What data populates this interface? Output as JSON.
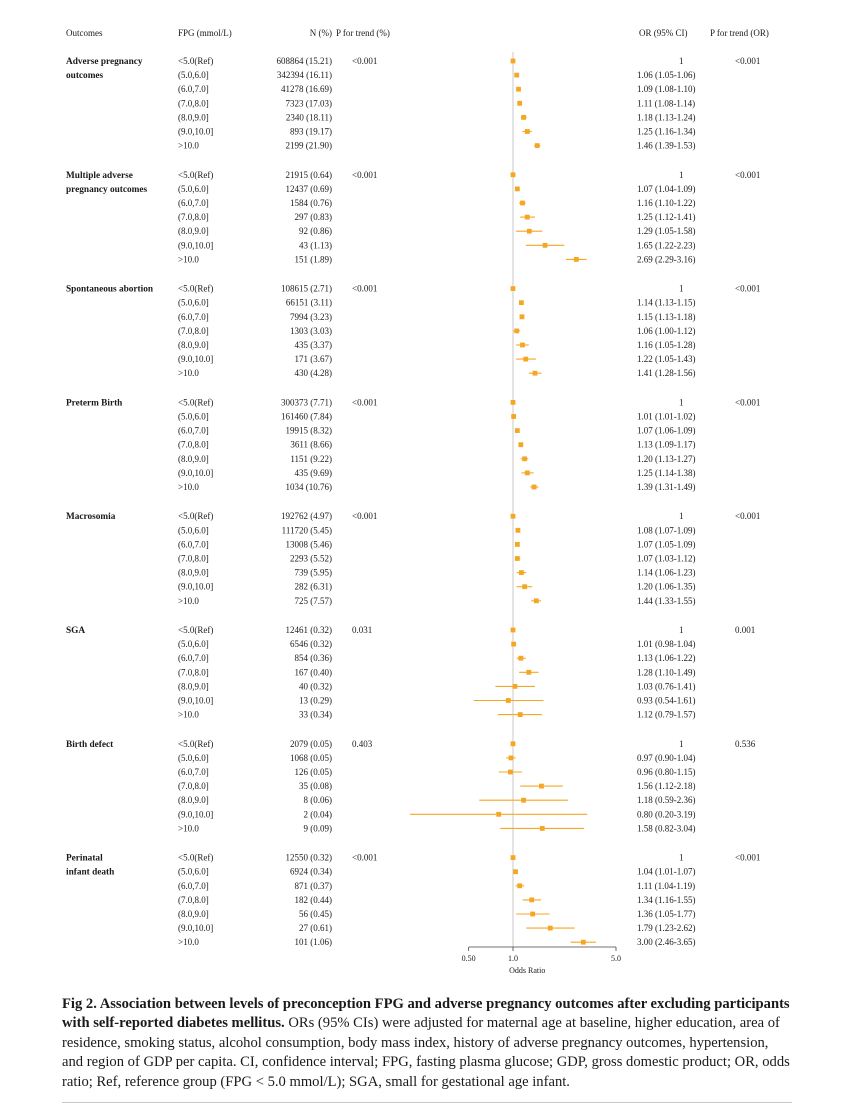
{
  "chart_data": {
    "type": "forest",
    "headers": {
      "outcomes": "Outcomes",
      "fpg": "FPG (mmol/L)",
      "n": "N (%)",
      "p_trend_pct": "P for trend (%)",
      "or": "OR (95% CI)",
      "p_trend_or": "P for trend (OR)"
    },
    "xlabel": "Odds Ratio",
    "x_scale": "log",
    "x_ticks": [
      "0.50",
      "1.0",
      "5.0"
    ],
    "reference_line": 1.0,
    "groups": [
      {
        "name": "Adverse pregnancy outcomes",
        "name_lines": [
          "Adverse pregnancy",
          "outcomes"
        ],
        "p_trend_pct": "<0.001",
        "p_trend_or": "<0.001",
        "rows": [
          {
            "fpg": "<5.0(Ref)",
            "n": "608864 (15.21)",
            "or_text": "1",
            "or": 1.0,
            "lo": 1.0,
            "hi": 1.0
          },
          {
            "fpg": "(5.0,6.0]",
            "n": "342394 (16.11)",
            "or_text": "1.06 (1.05-1.06)",
            "or": 1.06,
            "lo": 1.05,
            "hi": 1.06
          },
          {
            "fpg": "(6.0,7.0]",
            "n": "41278 (16.69)",
            "or_text": "1.09 (1.08-1.10)",
            "or": 1.09,
            "lo": 1.08,
            "hi": 1.1
          },
          {
            "fpg": "(7.0,8.0]",
            "n": "7323 (17.03)",
            "or_text": "1.11 (1.08-1.14)",
            "or": 1.11,
            "lo": 1.08,
            "hi": 1.14
          },
          {
            "fpg": "(8.0,9.0]",
            "n": "2340 (18.11)",
            "or_text": "1.18 (1.13-1.24)",
            "or": 1.18,
            "lo": 1.13,
            "hi": 1.24
          },
          {
            "fpg": "(9.0,10.0]",
            "n": "893 (19.17)",
            "or_text": "1.25 (1.16-1.34)",
            "or": 1.25,
            "lo": 1.16,
            "hi": 1.34
          },
          {
            "fpg": ">10.0",
            "n": "2199 (21.90)",
            "or_text": "1.46 (1.39-1.53)",
            "or": 1.46,
            "lo": 1.39,
            "hi": 1.53
          }
        ]
      },
      {
        "name": "Multiple adverse pregnancy outcomes",
        "name_lines": [
          "Multiple adverse",
          "pregnancy outcomes"
        ],
        "p_trend_pct": "<0.001",
        "p_trend_or": "<0.001",
        "rows": [
          {
            "fpg": "<5.0(Ref)",
            "n": "21915 (0.64)",
            "or_text": "1",
            "or": 1.0,
            "lo": 1.0,
            "hi": 1.0
          },
          {
            "fpg": "(5.0,6.0]",
            "n": "12437 (0.69)",
            "or_text": "1.07 (1.04-1.09)",
            "or": 1.07,
            "lo": 1.04,
            "hi": 1.09
          },
          {
            "fpg": "(6.0,7.0]",
            "n": "1584 (0.76)",
            "or_text": "1.16 (1.10-1.22)",
            "or": 1.16,
            "lo": 1.1,
            "hi": 1.22
          },
          {
            "fpg": "(7.0,8.0]",
            "n": "297 (0.83)",
            "or_text": "1.25 (1.12-1.41)",
            "or": 1.25,
            "lo": 1.12,
            "hi": 1.41
          },
          {
            "fpg": "(8.0,9.0]",
            "n": "92 (0.86)",
            "or_text": "1.29 (1.05-1.58)",
            "or": 1.29,
            "lo": 1.05,
            "hi": 1.58
          },
          {
            "fpg": "(9.0,10.0]",
            "n": "43 (1.13)",
            "or_text": "1.65 (1.22-2.23)",
            "or": 1.65,
            "lo": 1.22,
            "hi": 2.23
          },
          {
            "fpg": ">10.0",
            "n": "151 (1.89)",
            "or_text": "2.69 (2.29-3.16)",
            "or": 2.69,
            "lo": 2.29,
            "hi": 3.16
          }
        ]
      },
      {
        "name": "Spontaneous abortion",
        "name_lines": [
          "Spontaneous abortion"
        ],
        "p_trend_pct": "<0.001",
        "p_trend_or": "<0.001",
        "rows": [
          {
            "fpg": "<5.0(Ref)",
            "n": "108615 (2.71)",
            "or_text": "1",
            "or": 1.0,
            "lo": 1.0,
            "hi": 1.0
          },
          {
            "fpg": "(5.0,6.0]",
            "n": "66151 (3.11)",
            "or_text": "1.14 (1.13-1.15)",
            "or": 1.14,
            "lo": 1.13,
            "hi": 1.15
          },
          {
            "fpg": "(6.0,7.0]",
            "n": "7994 (3.23)",
            "or_text": "1.15 (1.13-1.18)",
            "or": 1.15,
            "lo": 1.13,
            "hi": 1.18
          },
          {
            "fpg": "(7.0,8.0]",
            "n": "1303 (3.03)",
            "or_text": "1.06 (1.00-1.12)",
            "or": 1.06,
            "lo": 1.0,
            "hi": 1.12
          },
          {
            "fpg": "(8.0,9.0]",
            "n": "435 (3.37)",
            "or_text": "1.16 (1.05-1.28)",
            "or": 1.16,
            "lo": 1.05,
            "hi": 1.28
          },
          {
            "fpg": "(9.0,10.0]",
            "n": "171 (3.67)",
            "or_text": "1.22 (1.05-1.43)",
            "or": 1.22,
            "lo": 1.05,
            "hi": 1.43
          },
          {
            "fpg": ">10.0",
            "n": "430 (4.28)",
            "or_text": "1.41 (1.28-1.56)",
            "or": 1.41,
            "lo": 1.28,
            "hi": 1.56
          }
        ]
      },
      {
        "name": "Preterm Birth",
        "name_lines": [
          "Preterm Birth"
        ],
        "p_trend_pct": "<0.001",
        "p_trend_or": "<0.001",
        "rows": [
          {
            "fpg": "<5.0(Ref)",
            "n": "300373 (7.71)",
            "or_text": "1",
            "or": 1.0,
            "lo": 1.0,
            "hi": 1.0
          },
          {
            "fpg": "(5.0,6.0]",
            "n": "161460 (7.84)",
            "or_text": "1.01 (1.01-1.02)",
            "or": 1.01,
            "lo": 1.01,
            "hi": 1.02
          },
          {
            "fpg": "(6.0,7.0]",
            "n": "19915 (8.32)",
            "or_text": "1.07 (1.06-1.09)",
            "or": 1.07,
            "lo": 1.06,
            "hi": 1.09
          },
          {
            "fpg": "(7.0,8.0]",
            "n": "3611 (8.66)",
            "or_text": "1.13 (1.09-1.17)",
            "or": 1.13,
            "lo": 1.09,
            "hi": 1.17
          },
          {
            "fpg": "(8.0,9.0]",
            "n": "1151 (9.22)",
            "or_text": "1.20 (1.13-1.27)",
            "or": 1.2,
            "lo": 1.13,
            "hi": 1.27
          },
          {
            "fpg": "(9.0,10.0]",
            "n": "435 (9.69)",
            "or_text": "1.25 (1.14-1.38)",
            "or": 1.25,
            "lo": 1.14,
            "hi": 1.38
          },
          {
            "fpg": ">10.0",
            "n": "1034 (10.76)",
            "or_text": "1.39 (1.31-1.49)",
            "or": 1.39,
            "lo": 1.31,
            "hi": 1.49
          }
        ]
      },
      {
        "name": "Macrosomia",
        "name_lines": [
          "Macrosomia"
        ],
        "p_trend_pct": "<0.001",
        "p_trend_or": "<0.001",
        "rows": [
          {
            "fpg": "<5.0(Ref)",
            "n": "192762 (4.97)",
            "or_text": "1",
            "or": 1.0,
            "lo": 1.0,
            "hi": 1.0
          },
          {
            "fpg": "(5.0,6.0]",
            "n": "111720 (5.45)",
            "or_text": "1.08 (1.07-1.09)",
            "or": 1.08,
            "lo": 1.07,
            "hi": 1.09
          },
          {
            "fpg": "(6.0,7.0]",
            "n": "13008 (5.46)",
            "or_text": "1.07 (1.05-1.09)",
            "or": 1.07,
            "lo": 1.05,
            "hi": 1.09
          },
          {
            "fpg": "(7.0,8.0]",
            "n": "2293 (5.52)",
            "or_text": "1.07 (1.03-1.12)",
            "or": 1.07,
            "lo": 1.03,
            "hi": 1.12
          },
          {
            "fpg": "(8.0,9.0]",
            "n": "739 (5.95)",
            "or_text": "1.14 (1.06-1.23)",
            "or": 1.14,
            "lo": 1.06,
            "hi": 1.23
          },
          {
            "fpg": "(9.0,10.0]",
            "n": "282 (6.31)",
            "or_text": "1.20 (1.06-1.35)",
            "or": 1.2,
            "lo": 1.06,
            "hi": 1.35
          },
          {
            "fpg": ">10.0",
            "n": "725 (7.57)",
            "or_text": "1.44 (1.33-1.55)",
            "or": 1.44,
            "lo": 1.33,
            "hi": 1.55
          }
        ]
      },
      {
        "name": "SGA",
        "name_lines": [
          "SGA"
        ],
        "p_trend_pct": "0.031",
        "p_trend_or": "0.001",
        "rows": [
          {
            "fpg": "<5.0(Ref)",
            "n": "12461 (0.32)",
            "or_text": "1",
            "or": 1.0,
            "lo": 1.0,
            "hi": 1.0
          },
          {
            "fpg": "(5.0,6.0]",
            "n": "6546 (0.32)",
            "or_text": "1.01 (0.98-1.04)",
            "or": 1.01,
            "lo": 0.98,
            "hi": 1.04
          },
          {
            "fpg": "(6.0,7.0]",
            "n": "854 (0.36)",
            "or_text": "1.13 (1.06-1.22)",
            "or": 1.13,
            "lo": 1.06,
            "hi": 1.22
          },
          {
            "fpg": "(7.0,8.0]",
            "n": "167 (0.40)",
            "or_text": "1.28 (1.10-1.49)",
            "or": 1.28,
            "lo": 1.1,
            "hi": 1.49
          },
          {
            "fpg": "(8.0,9.0]",
            "n": "40 (0.32)",
            "or_text": "1.03 (0.76-1.41)",
            "or": 1.03,
            "lo": 0.76,
            "hi": 1.41
          },
          {
            "fpg": "(9.0,10.0]",
            "n": "13 (0.29)",
            "or_text": "0.93 (0.54-1.61)",
            "or": 0.93,
            "lo": 0.54,
            "hi": 1.61
          },
          {
            "fpg": ">10.0",
            "n": "33 (0.34)",
            "or_text": "1.12 (0.79-1.57)",
            "or": 1.12,
            "lo": 0.79,
            "hi": 1.57
          }
        ]
      },
      {
        "name": "Birth defect",
        "name_lines": [
          "Birth defect"
        ],
        "p_trend_pct": "0.403",
        "p_trend_or": "0.536",
        "rows": [
          {
            "fpg": "<5.0(Ref)",
            "n": "2079 (0.05)",
            "or_text": "1",
            "or": 1.0,
            "lo": 1.0,
            "hi": 1.0
          },
          {
            "fpg": "(5.0,6.0]",
            "n": "1068 (0.05)",
            "or_text": "0.97 (0.90-1.04)",
            "or": 0.97,
            "lo": 0.9,
            "hi": 1.04
          },
          {
            "fpg": "(6.0,7.0]",
            "n": "126 (0.05)",
            "or_text": "0.96 (0.80-1.15)",
            "or": 0.96,
            "lo": 0.8,
            "hi": 1.15
          },
          {
            "fpg": "(7.0,8.0]",
            "n": "35 (0.08)",
            "or_text": "1.56 (1.12-2.18)",
            "or": 1.56,
            "lo": 1.12,
            "hi": 2.18
          },
          {
            "fpg": "(8.0,9.0]",
            "n": "8 (0.06)",
            "or_text": "1.18 (0.59-2.36)",
            "or": 1.18,
            "lo": 0.59,
            "hi": 2.36
          },
          {
            "fpg": "(9.0,10.0]",
            "n": "2 (0.04)",
            "or_text": "0.80 (0.20-3.19)",
            "or": 0.8,
            "lo": 0.2,
            "hi": 3.19
          },
          {
            "fpg": ">10.0",
            "n": "9 (0.09)",
            "or_text": "1.58 (0.82-3.04)",
            "or": 1.58,
            "lo": 0.82,
            "hi": 3.04
          }
        ]
      },
      {
        "name": "Perinatal infant death",
        "name_lines": [
          "Perinatal",
          "infant death"
        ],
        "p_trend_pct": "<0.001",
        "p_trend_or": "<0.001",
        "rows": [
          {
            "fpg": "<5.0(Ref)",
            "n": "12550 (0.32)",
            "or_text": "1",
            "or": 1.0,
            "lo": 1.0,
            "hi": 1.0
          },
          {
            "fpg": "(5.0,6.0]",
            "n": "6924 (0.34)",
            "or_text": "1.04 (1.01-1.07)",
            "or": 1.04,
            "lo": 1.01,
            "hi": 1.07
          },
          {
            "fpg": "(6.0,7.0]",
            "n": "871 (0.37)",
            "or_text": "1.11 (1.04-1.19)",
            "or": 1.11,
            "lo": 1.04,
            "hi": 1.19
          },
          {
            "fpg": "(7.0,8.0]",
            "n": "182 (0.44)",
            "or_text": "1.34 (1.16-1.55)",
            "or": 1.34,
            "lo": 1.16,
            "hi": 1.55
          },
          {
            "fpg": "(8.0,9.0]",
            "n": "56 (0.45)",
            "or_text": "1.36 (1.05-1.77)",
            "or": 1.36,
            "lo": 1.05,
            "hi": 1.77
          },
          {
            "fpg": "(9.0,10.0]",
            "n": "27 (0.61)",
            "or_text": "1.79 (1.23-2.62)",
            "or": 1.79,
            "lo": 1.23,
            "hi": 2.62
          },
          {
            "fpg": ">10.0",
            "n": "101 (1.06)",
            "or_text": "3.00 (2.46-3.65)",
            "or": 3.0,
            "lo": 2.46,
            "hi": 3.65
          }
        ]
      }
    ]
  },
  "colors": {
    "marker": "#f5a623",
    "reference_line": "#bdbdbd",
    "axis": "#444444",
    "rule": "#c8c8c8"
  },
  "caption": {
    "title": "Fig 2. Association between levels of preconception FPG and adverse pregnancy outcomes after excluding participants with self-reported diabetes mellitus.",
    "body": " ORs (95% CIs) were adjusted for maternal age at baseline, higher education, area of residence, smoking status, alcohol consumption, body mass index, history of adverse pregnancy outcomes, hypertension, and region of GDP per capita. CI, confidence interval; FPG, fasting plasma glucose; GDP, gross domestic product; OR, odds ratio; Ref, reference group (FPG < 5.0 mmol/L); SGA, small for gestational age infant."
  }
}
